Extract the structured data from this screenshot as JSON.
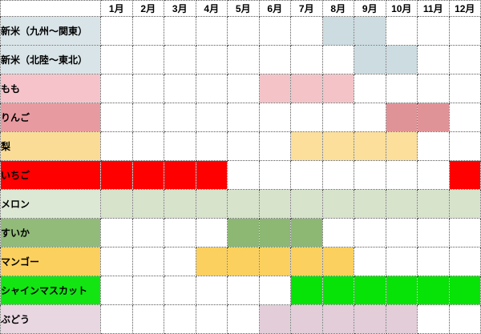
{
  "colors": {
    "grid": "#575757",
    "background": "#ffffff",
    "text": "#000000"
  },
  "table": {
    "corner_label": "",
    "months": [
      "1月",
      "2月",
      "3月",
      "4月",
      "5月",
      "6月",
      "7月",
      "8月",
      "9月",
      "10月",
      "11月",
      "12月"
    ],
    "rows": [
      {
        "label": "新米（九州～関東）",
        "label_color": "#d9e4e8",
        "cell_color": "#ccdce1",
        "highlight_months": [
          8,
          9
        ]
      },
      {
        "label": "新米（北陸～東北）",
        "label_color": "#d9e4e8",
        "cell_color": "#ccdce1",
        "highlight_months": [
          9,
          10
        ]
      },
      {
        "label": "もも",
        "label_color": "#f6c3ca",
        "cell_color": "#f3c3c8",
        "highlight_months": [
          6,
          7,
          8
        ]
      },
      {
        "label": "りんご",
        "label_color": "#e79ba0",
        "cell_color": "#e09397",
        "highlight_months": [
          10,
          11
        ]
      },
      {
        "label": "梨",
        "label_color": "#fadc97",
        "cell_color": "#fcdf9a",
        "highlight_months": [
          7,
          8,
          9,
          10
        ]
      },
      {
        "label": "いちご",
        "label_color": "#fe0000",
        "cell_color": "#fe0000",
        "highlight_months": [
          1,
          2,
          3,
          4,
          12
        ]
      },
      {
        "label": "メロン",
        "label_color": "#dde8d4",
        "cell_color": "#d7e3cb",
        "highlight_months": [
          1,
          2,
          3,
          4,
          5,
          6,
          7,
          8,
          9,
          10,
          11,
          12
        ]
      },
      {
        "label": "すいか",
        "label_color": "#92bb79",
        "cell_color": "#8cb873",
        "highlight_months": [
          5,
          6,
          7
        ]
      },
      {
        "label": "マンゴー",
        "label_color": "#fbd05e",
        "cell_color": "#fbd05e",
        "highlight_months": [
          4,
          5,
          6,
          7,
          8
        ]
      },
      {
        "label": "シャインマスカット",
        "label_color": "#13e513",
        "cell_color": "#07e207",
        "highlight_months": [
          7,
          8,
          9,
          10,
          11,
          12
        ]
      },
      {
        "label": "ぶどう",
        "label_color": "#e8d6e0",
        "cell_color": "#e3cdd9",
        "highlight_months": [
          6,
          7,
          8,
          9,
          10
        ]
      }
    ]
  },
  "chart_data": {
    "type": "heatmap",
    "title": "",
    "x_categories": [
      "1月",
      "2月",
      "3月",
      "4月",
      "5月",
      "6月",
      "7月",
      "8月",
      "9月",
      "10月",
      "11月",
      "12月"
    ],
    "y_categories": [
      "新米（九州～関東）",
      "新米（北陸～東北）",
      "もも",
      "りんご",
      "梨",
      "いちご",
      "メロン",
      "すいか",
      "マンゴー",
      "シャインマスカット",
      "ぶどう"
    ],
    "series": [
      {
        "name": "新米（九州～関東）",
        "in_season_months": [
          8,
          9
        ]
      },
      {
        "name": "新米（北陸～東北）",
        "in_season_months": [
          9,
          10
        ]
      },
      {
        "name": "もも",
        "in_season_months": [
          6,
          7,
          8
        ]
      },
      {
        "name": "りんご",
        "in_season_months": [
          10,
          11
        ]
      },
      {
        "name": "梨",
        "in_season_months": [
          7,
          8,
          9,
          10
        ]
      },
      {
        "name": "いちご",
        "in_season_months": [
          1,
          2,
          3,
          4,
          12
        ]
      },
      {
        "name": "メロン",
        "in_season_months": [
          1,
          2,
          3,
          4,
          5,
          6,
          7,
          8,
          9,
          10,
          11,
          12
        ]
      },
      {
        "name": "すいか",
        "in_season_months": [
          5,
          6,
          7
        ]
      },
      {
        "name": "マンゴー",
        "in_season_months": [
          4,
          5,
          6,
          7,
          8
        ]
      },
      {
        "name": "シャインマスカット",
        "in_season_months": [
          7,
          8,
          9,
          10,
          11,
          12
        ]
      },
      {
        "name": "ぶどう",
        "in_season_months": [
          6,
          7,
          8,
          9,
          10
        ]
      }
    ],
    "legend": "none",
    "grid": true,
    "layout_hint": "rows are items, columns are months Jan-Dec, filled cell = in season"
  }
}
